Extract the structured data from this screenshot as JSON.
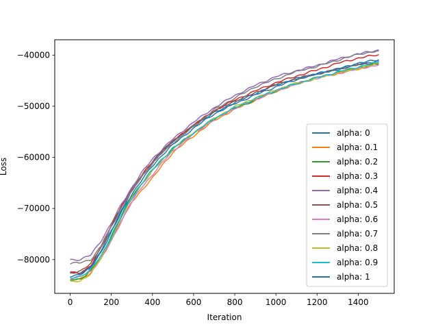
{
  "chart_data": {
    "type": "line",
    "title": "",
    "xlabel": "Iteration",
    "ylabel": "Loss",
    "xlim": [
      -75,
      1575
    ],
    "ylim": [
      -86600,
      -37000
    ],
    "xticks": [
      0,
      200,
      400,
      600,
      800,
      1000,
      1200,
      1400
    ],
    "xtick_labels": [
      "0",
      "200",
      "400",
      "600",
      "800",
      "1000",
      "1200",
      "1400"
    ],
    "yticks": [
      -80000,
      -70000,
      -60000,
      -50000,
      -40000
    ],
    "ytick_labels": [
      "−80000",
      "−70000",
      "−60000",
      "−50000",
      "−40000"
    ],
    "grid": false,
    "legend_position": "lower-right",
    "x": [
      0,
      50,
      100,
      150,
      200,
      250,
      300,
      350,
      400,
      450,
      500,
      600,
      700,
      800,
      900,
      1000,
      1100,
      1200,
      1300,
      1400,
      1500
    ],
    "series": [
      {
        "name": "alpha: 0",
        "color": "#1f77b4",
        "values": [
          -82700,
          -82600,
          -81500,
          -78300,
          -74300,
          -70300,
          -66600,
          -63600,
          -60900,
          -58600,
          -56800,
          -53800,
          -51300,
          -49300,
          -47500,
          -45800,
          -44600,
          -43600,
          -42800,
          -41800,
          -41200
        ]
      },
      {
        "name": "alpha: 0.1",
        "color": "#ff7f0e",
        "values": [
          -84100,
          -83700,
          -82600,
          -79800,
          -76100,
          -72200,
          -68700,
          -66300,
          -64100,
          -61400,
          -59000,
          -55800,
          -52800,
          -50600,
          -48800,
          -47100,
          -45700,
          -44500,
          -43600,
          -42700,
          -41700
        ]
      },
      {
        "name": "alpha: 0.2",
        "color": "#2ca02c",
        "values": [
          -84000,
          -83800,
          -82200,
          -79400,
          -75300,
          -71300,
          -67600,
          -65000,
          -62400,
          -60200,
          -58200,
          -55200,
          -52500,
          -50400,
          -48800,
          -47000,
          -45500,
          -44400,
          -43400,
          -42500,
          -41700
        ]
      },
      {
        "name": "alpha: 0.3",
        "color": "#d62728",
        "values": [
          -82300,
          -82700,
          -81300,
          -77600,
          -73500,
          -69600,
          -66000,
          -63400,
          -60900,
          -58800,
          -56800,
          -53700,
          -50900,
          -48800,
          -47000,
          -45400,
          -44100,
          -42900,
          -41600,
          -40600,
          -39900
        ]
      },
      {
        "name": "alpha: 0.4",
        "color": "#9467bd",
        "values": [
          -80000,
          -80000,
          -79100,
          -76300,
          -72900,
          -69100,
          -65900,
          -62900,
          -60300,
          -58300,
          -56400,
          -53100,
          -50300,
          -47900,
          -45900,
          -44200,
          -43100,
          -42000,
          -40800,
          -39800,
          -39000
        ]
      },
      {
        "name": "alpha: 0.5",
        "color": "#8c564b",
        "values": [
          -82600,
          -82300,
          -80800,
          -77400,
          -73300,
          -69600,
          -66500,
          -63600,
          -61000,
          -58800,
          -56800,
          -53700,
          -50900,
          -49000,
          -47400,
          -45800,
          -44600,
          -43700,
          -42800,
          -41900,
          -41400
        ]
      },
      {
        "name": "alpha: 0.6",
        "color": "#e377c2",
        "values": [
          -83700,
          -83300,
          -82300,
          -79900,
          -76400,
          -72400,
          -68700,
          -65700,
          -63400,
          -60900,
          -58700,
          -55400,
          -52600,
          -50400,
          -48700,
          -47000,
          -45600,
          -44500,
          -43600,
          -42700,
          -41900
        ]
      },
      {
        "name": "alpha: 0.7",
        "color": "#7f7f7f",
        "values": [
          -80800,
          -80600,
          -80000,
          -77400,
          -73600,
          -69800,
          -66500,
          -63600,
          -61200,
          -59000,
          -57200,
          -54000,
          -50700,
          -48400,
          -46200,
          -44700,
          -43200,
          -42200,
          -41000,
          -39800,
          -39200
        ]
      },
      {
        "name": "alpha: 0.8",
        "color": "#bcbd22",
        "values": [
          -84400,
          -84200,
          -82700,
          -79700,
          -75900,
          -71600,
          -67900,
          -65200,
          -62700,
          -60400,
          -58300,
          -55200,
          -52400,
          -50100,
          -48400,
          -46800,
          -45500,
          -44500,
          -43500,
          -42600,
          -41600
        ]
      },
      {
        "name": "alpha: 0.9",
        "color": "#17becf",
        "values": [
          -83700,
          -83300,
          -81900,
          -79300,
          -75700,
          -71600,
          -68000,
          -65000,
          -62500,
          -60300,
          -58400,
          -55200,
          -52400,
          -50300,
          -48500,
          -46900,
          -45600,
          -44400,
          -43300,
          -42300,
          -41400
        ]
      },
      {
        "name": "alpha: 1",
        "color": "#1f77b4",
        "values": [
          -83300,
          -82800,
          -81600,
          -78600,
          -74600,
          -70700,
          -67200,
          -64300,
          -61700,
          -59400,
          -57500,
          -54300,
          -51500,
          -49500,
          -47800,
          -46200,
          -44800,
          -43700,
          -42700,
          -41600,
          -40900
        ]
      }
    ]
  }
}
